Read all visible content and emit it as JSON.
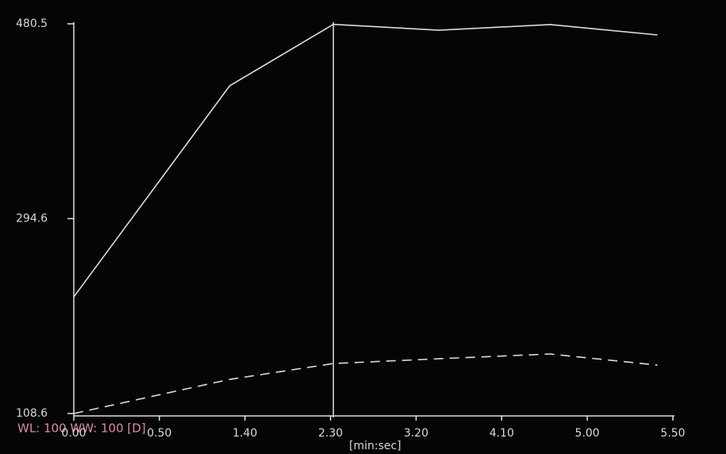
{
  "chart_data": {
    "type": "line",
    "x": [
      0.0,
      1.24,
      2.33,
      3.44,
      4.61,
      5.41
    ],
    "series": [
      {
        "color": "#dcdcdc",
        "dash": false,
        "values": [
          219.9,
          421.4,
          480.0,
          474.4,
          479.8,
          469.9
        ]
      },
      {
        "color": "#dcdcdc",
        "dash": true,
        "values": [
          108.6,
          141.2,
          156.3,
          160.9,
          165.4,
          154.8
        ]
      }
    ],
    "cursor": 2.33,
    "xlim": [
      0,
      5.5
    ],
    "xticks": [
      {
        "value": 0,
        "label": "0.00"
      },
      {
        "value": 0.5,
        "label": "0.50"
      },
      {
        "value": 1.4,
        "label": "1.40"
      },
      {
        "value": 2.3,
        "label": "2.30"
      },
      {
        "value": 3.2,
        "label": "3.20"
      },
      {
        "value": 4.1,
        "label": "4.10"
      },
      {
        "value": 5,
        "label": "5.00"
      },
      {
        "value": 5.5,
        "label": "5.50"
      }
    ],
    "xlabel": "[min:sec]",
    "ylim": [
      108.6,
      480.5
    ],
    "yticks": [
      108.6,
      294.6,
      480.5
    ],
    "annotation": "WL: 100 WW: 100 [D]"
  }
}
